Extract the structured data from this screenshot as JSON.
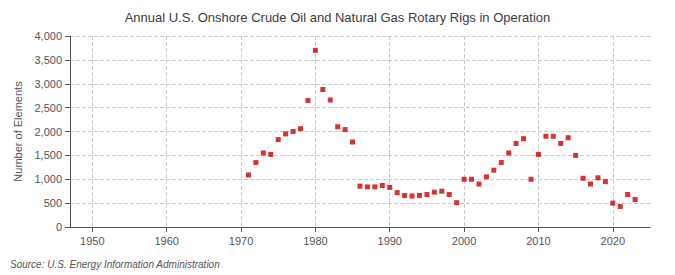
{
  "chart_data": {
    "type": "scatter",
    "title": "Annual U.S. Onshore Crude Oil and Natural Gas Rotary Rigs in Operation",
    "ylabel": "Number of Elements",
    "annotation": "Source: U.S. Energy Information Administration",
    "color": "#cc0000",
    "marker": "square",
    "grid": true,
    "xlim": [
      1947,
      2025
    ],
    "ylim": [
      0,
      4000
    ],
    "xticks": [
      1950,
      1960,
      1970,
      1980,
      1990,
      2000,
      2010,
      2020
    ],
    "yticks": [
      0,
      500,
      {
        "value": 1000,
        "label": "1,000"
      },
      {
        "value": 1500,
        "label": "1,500"
      },
      {
        "value": 2000,
        "label": "2,000"
      },
      {
        "value": 2500,
        "label": "2,500"
      },
      {
        "value": 3000,
        "label": "3,000"
      },
      {
        "value": 3500,
        "label": "3,500"
      },
      {
        "value": 4000,
        "label": "4,000"
      }
    ],
    "x": [
      1971,
      1972,
      1973,
      1974,
      1975,
      1976,
      1977,
      1978,
      1979,
      1980,
      1981,
      1982,
      1983,
      1984,
      1985,
      1986,
      1987,
      1988,
      1989,
      1990,
      1991,
      1992,
      1993,
      1994,
      1995,
      1996,
      1997,
      1998,
      1999,
      2000,
      2001,
      2002,
      2003,
      2004,
      2005,
      2006,
      2007,
      2008,
      2009,
      2010,
      2011,
      2012,
      2013,
      2014,
      2015,
      2016,
      2017,
      2018,
      2019,
      2020,
      2021,
      2022,
      2023
    ],
    "values": [
      1090,
      1350,
      1550,
      1520,
      1830,
      1950,
      2000,
      2060,
      2650,
      3700,
      2880,
      2660,
      2100,
      2040,
      1780,
      855,
      840,
      840,
      870,
      830,
      720,
      660,
      650,
      660,
      680,
      730,
      750,
      680,
      510,
      1000,
      1000,
      900,
      1050,
      1190,
      1350,
      1550,
      1750,
      1850,
      1000,
      1520,
      1900,
      1900,
      1750,
      1870,
      1500,
      1020,
      900,
      1030,
      950,
      500,
      430,
      680,
      575
    ]
  }
}
